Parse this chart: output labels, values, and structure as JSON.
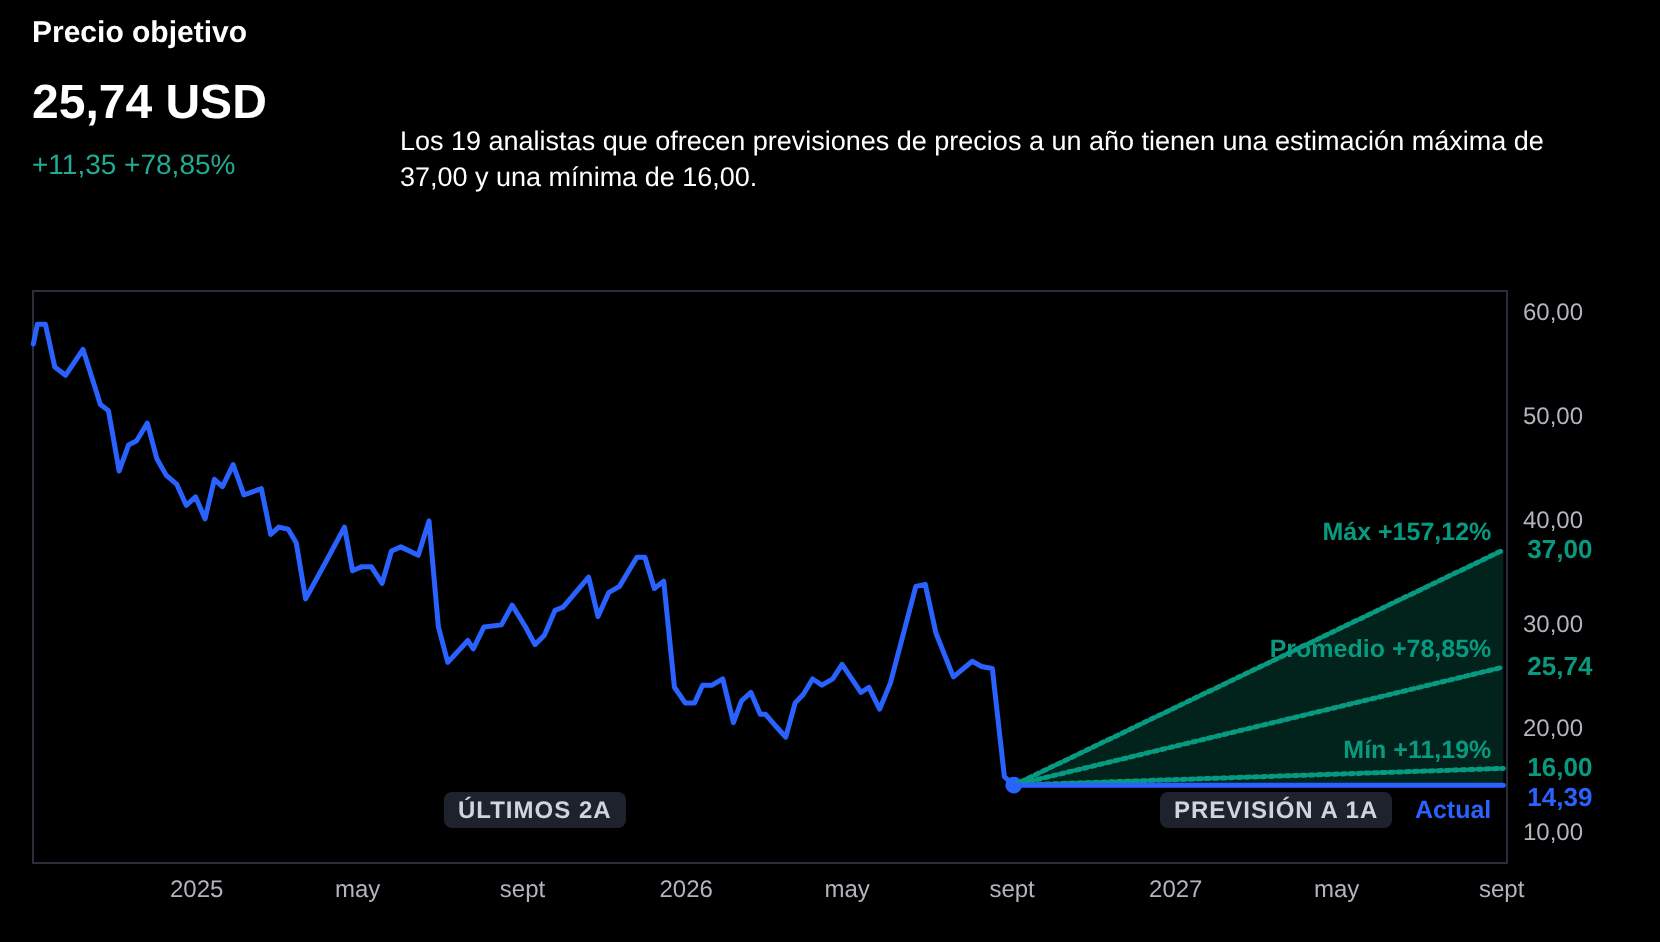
{
  "chart_data": {
    "type": "line",
    "title": "Precio objetivo",
    "subtitle": "25,74 USD",
    "annotations": [
      "+11,35 +78,85%",
      "Los 19 analistas que ofrecen previsiones de precios a un año tienen una estimación máxima de 37,00 y una mínima de 16,00.",
      "ÚLTIMOS 2A",
      "PREVISIÓN A 1A"
    ],
    "xlim": [
      "2024-09-01",
      "2027-09-05"
    ],
    "xticks": [
      {
        "value": "2025-01-01",
        "label": "2025"
      },
      {
        "value": "2025-05-01",
        "label": "may"
      },
      {
        "value": "2025-09-01",
        "label": "sept"
      },
      {
        "value": "2026-01-01",
        "label": "2026"
      },
      {
        "value": "2026-05-01",
        "label": "may"
      },
      {
        "value": "2026-09-01",
        "label": "sept"
      },
      {
        "value": "2027-01-01",
        "label": "2027"
      },
      {
        "value": "2027-05-01",
        "label": "may"
      },
      {
        "value": "2027-09-01",
        "label": "sept"
      }
    ],
    "ylim": [
      7,
      62
    ],
    "yticks": [
      {
        "value": 10,
        "label": "10,00"
      },
      {
        "value": 20,
        "label": "20,00"
      },
      {
        "value": 30,
        "label": "30,00"
      },
      {
        "value": 40,
        "label": "40,00"
      },
      {
        "value": 50,
        "label": "50,00"
      },
      {
        "value": 60,
        "label": "60,00"
      }
    ],
    "legend": false,
    "series": [
      {
        "type": "line",
        "color": "#2962ff",
        "line_style": "solid",
        "x": [
          "2024-09-02",
          "2024-09-05",
          "2024-09-11",
          "2024-09-18",
          "2024-09-26",
          "2024-10-09",
          "2024-10-22",
          "2024-10-28",
          "2024-11-05",
          "2024-11-12",
          "2024-11-18",
          "2024-11-26",
          "2024-12-03",
          "2024-12-10",
          "2024-12-18",
          "2024-12-25",
          "2025-01-01",
          "2025-01-08",
          "2025-01-15",
          "2025-01-21",
          "2025-01-29",
          "2025-02-06",
          "2025-02-19",
          "2025-02-26",
          "2025-03-04",
          "2025-03-11",
          "2025-03-17",
          "2025-03-24",
          "2025-04-07",
          "2025-04-22",
          "2025-04-28",
          "2025-05-05",
          "2025-05-12",
          "2025-05-20",
          "2025-05-27",
          "2025-06-03",
          "2025-06-16",
          "2025-06-24",
          "2025-07-01",
          "2025-07-08",
          "2025-07-23",
          "2025-07-27",
          "2025-08-04",
          "2025-08-17",
          "2025-08-25",
          "2025-09-04",
          "2025-09-11",
          "2025-09-18",
          "2025-09-26",
          "2025-10-02",
          "2025-10-21",
          "2025-10-28",
          "2025-11-05",
          "2025-11-13",
          "2025-11-26",
          "2025-12-02",
          "2025-12-09",
          "2025-12-16",
          "2025-12-24",
          "2026-01-01",
          "2026-01-08",
          "2026-01-14",
          "2026-01-21",
          "2026-01-29",
          "2026-02-06",
          "2026-02-12",
          "2026-02-19",
          "2026-02-26",
          "2026-03-02",
          "2026-03-10",
          "2026-03-17",
          "2026-03-24",
          "2026-03-30",
          "2026-04-06",
          "2026-04-13",
          "2026-04-21",
          "2026-04-28",
          "2026-05-12",
          "2026-05-18",
          "2026-05-26",
          "2026-06-03",
          "2026-06-22",
          "2026-06-29",
          "2026-07-07",
          "2026-07-20",
          "2026-08-03",
          "2026-08-10",
          "2026-08-18",
          "2026-08-27",
          "2026-09-03"
        ],
        "values": [
          56.8,
          58.7,
          58.7,
          54.6,
          53.8,
          56.3,
          51.0,
          50.4,
          44.6,
          47.1,
          47.5,
          49.2,
          45.8,
          44.2,
          43.3,
          41.3,
          42.1,
          40.0,
          43.8,
          43.1,
          45.2,
          42.3,
          42.9,
          38.5,
          39.2,
          39.0,
          37.7,
          32.3,
          35.6,
          39.2,
          35.0,
          35.4,
          35.4,
          33.8,
          36.9,
          37.3,
          36.5,
          39.8,
          29.6,
          26.2,
          28.3,
          27.5,
          29.6,
          29.8,
          31.7,
          29.6,
          27.9,
          28.8,
          31.2,
          31.5,
          34.4,
          30.6,
          32.9,
          33.5,
          36.3,
          36.3,
          33.3,
          34.0,
          23.8,
          22.3,
          22.3,
          24.0,
          24.0,
          24.6,
          20.4,
          22.5,
          23.3,
          21.2,
          21.2,
          20.0,
          19.0,
          22.3,
          23.1,
          24.6,
          24.0,
          24.6,
          26.0,
          23.3,
          23.8,
          21.7,
          24.2,
          33.5,
          33.7,
          29.0,
          24.8,
          26.3,
          25.8,
          25.6,
          15.2,
          14.39
        ]
      },
      {
        "type": "scatter",
        "color": "#2962ff",
        "marker": "circle",
        "x": [
          "2026-09-03"
        ],
        "values": [
          14.39
        ]
      },
      {
        "type": "line",
        "name": "Máx +157,12%",
        "color": "#089981",
        "line_style": "dotted",
        "x": [
          "2026-09-03",
          "2027-09-03"
        ],
        "values": [
          14.39,
          37
        ],
        "lower": [
          14.39,
          14.39
        ],
        "upper": [
          14.39,
          37
        ],
        "value_labels": [
          null,
          "37,00"
        ]
      },
      {
        "type": "line",
        "name": "Promedio +78,85%",
        "color": "#089981",
        "line_style": "dotted",
        "x": [
          "2026-09-03",
          "2027-09-03"
        ],
        "values": [
          14.39,
          25.74
        ],
        "value_labels": [
          null,
          "25,74"
        ]
      },
      {
        "type": "line",
        "name": "Mín +11,19%",
        "color": "#089981",
        "line_style": "dotted",
        "x": [
          "2026-09-03",
          "2027-09-03"
        ],
        "values": [
          14.39,
          16
        ],
        "value_labels": [
          null,
          "16,00"
        ]
      },
      {
        "type": "line",
        "name": "Actual",
        "color": "#2962ff",
        "line_style": "solid",
        "x": [
          "2026-09-03",
          "2027-09-03"
        ],
        "values": [
          14.39,
          14.39
        ],
        "value_labels": [
          null,
          "14,39"
        ]
      }
    ]
  }
}
